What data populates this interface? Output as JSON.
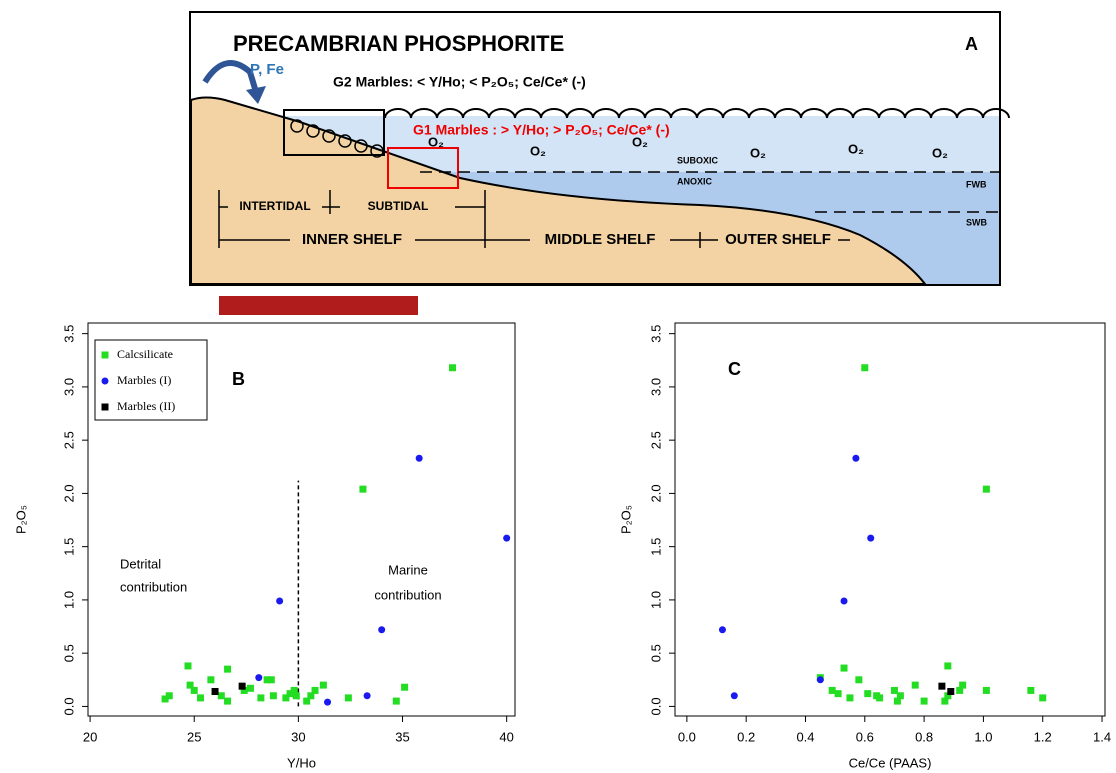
{
  "diagram": {
    "title": "PRECAMBRIAN PHOSPHORITE",
    "panel_label": "A",
    "flux_label": "P, Fe",
    "g2_label": "G2 Marbles: < Y/Ho; < P₂O₅; Ce/Ce* (-)",
    "g1_label": "G1 Marbles : > Y/Ho; > P₂O₅; Ce/Ce* (-)",
    "oxygen_labels": [
      "O₂",
      "O₂",
      "O₂",
      "O₂",
      "O₂",
      "O₂"
    ],
    "suboxic": "SUBOXIC",
    "anoxic": "ANOXIC",
    "fwb": "FWB",
    "swb": "SWB",
    "zones": [
      "INTERTIDAL",
      "SUBTIDAL"
    ],
    "shelves": [
      "INNER SHELF",
      "MIDDLE SHELF",
      "OUTER SHELF"
    ]
  },
  "chart_data": [
    {
      "type": "scatter",
      "panel_label": "B",
      "x_label": "Y/Ho",
      "y_label": "P₂O₅",
      "xlim": [
        19.9,
        40.4
      ],
      "ylim": [
        -0.09,
        3.6
      ],
      "xticks": [
        20,
        25,
        30,
        35,
        40
      ],
      "yticks": [
        {
          "value": 0,
          "label": "0.0"
        },
        0.5,
        {
          "value": 1,
          "label": "1.0"
        },
        1.5,
        {
          "value": 2,
          "label": "2.0"
        },
        2.5,
        {
          "value": 3,
          "label": "3.0"
        },
        3.5
      ],
      "legend": "top-left",
      "annotations": [
        [
          "Detrital",
          "contribution"
        ],
        [
          "Marine",
          "contribution"
        ]
      ],
      "reference_line": {
        "x": 30,
        "y_top": 2.12
      },
      "series": [
        {
          "name": "Calcsilicate",
          "color": "#22dd22",
          "marker": "square",
          "x": [
            23.6,
            23.8,
            24.7,
            24.8,
            25.0,
            25.3,
            25.8,
            26.3,
            26.6,
            26.6,
            27.4,
            27.7,
            28.2,
            28.5,
            28.7,
            28.8,
            29.4,
            29.6,
            29.8,
            29.9,
            30.4,
            30.6,
            30.8,
            31.2,
            32.4,
            33.1,
            34.7,
            35.1,
            37.4
          ],
          "values": [
            0.07,
            0.1,
            0.38,
            0.2,
            0.15,
            0.08,
            0.25,
            0.1,
            0.35,
            0.05,
            0.15,
            0.17,
            0.08,
            0.25,
            0.25,
            0.1,
            0.08,
            0.12,
            0.15,
            0.1,
            0.05,
            0.1,
            0.15,
            0.2,
            0.08,
            2.04,
            0.05,
            0.18,
            3.18
          ]
        },
        {
          "name": "Marbles (I)",
          "color": "#1a1aee",
          "marker": "circle",
          "x": [
            28.1,
            29.1,
            31.4,
            33.3,
            34.0,
            35.8,
            40.0
          ],
          "values": [
            0.27,
            0.99,
            0.04,
            0.1,
            0.72,
            2.33,
            1.58
          ]
        },
        {
          "name": "Marbles (II)",
          "color": "#000000",
          "marker": "square",
          "x": [
            26.0,
            27.3
          ],
          "values": [
            0.14,
            0.19
          ]
        }
      ]
    },
    {
      "type": "scatter",
      "panel_label": "C",
      "x_label": "Ce/Ce (PAAS)",
      "y_label": "P₂O₅",
      "xlim": [
        -0.04,
        1.41
      ],
      "ylim": [
        -0.09,
        3.6
      ],
      "xticks": [
        {
          "value": 0,
          "label": "0.0"
        },
        0.2,
        0.4,
        0.6,
        0.8,
        {
          "value": 1,
          "label": "1.0"
        },
        1.2,
        1.4
      ],
      "yticks": [
        {
          "value": 0,
          "label": "0.0"
        },
        0.5,
        {
          "value": 1,
          "label": "1.0"
        },
        1.5,
        {
          "value": 2,
          "label": "2.0"
        },
        2.5,
        {
          "value": 3,
          "label": "3.0"
        },
        3.5
      ],
      "series": [
        {
          "color": "#22dd22",
          "marker": "square",
          "x": [
            0.45,
            0.49,
            0.51,
            0.53,
            0.55,
            0.58,
            0.6,
            0.61,
            0.64,
            0.65,
            0.7,
            0.71,
            0.72,
            0.77,
            0.8,
            0.87,
            0.88,
            0.88,
            0.92,
            0.93,
            1.01,
            1.01,
            1.16,
            1.2
          ],
          "values": [
            0.27,
            0.15,
            0.12,
            0.36,
            0.08,
            0.25,
            3.18,
            0.12,
            0.1,
            0.08,
            0.15,
            0.05,
            0.1,
            0.2,
            0.05,
            0.05,
            0.38,
            0.1,
            0.15,
            0.2,
            2.04,
            0.15,
            0.15,
            0.08
          ]
        },
        {
          "color": "#1a1aee",
          "marker": "circle",
          "x": [
            0.12,
            0.16,
            0.45,
            0.53,
            0.57,
            0.62
          ],
          "values": [
            0.72,
            0.1,
            0.25,
            0.99,
            2.33,
            1.58
          ]
        },
        {
          "color": "#000000",
          "marker": "square",
          "x": [
            0.86,
            0.89
          ],
          "values": [
            0.19,
            0.14
          ]
        }
      ]
    }
  ]
}
